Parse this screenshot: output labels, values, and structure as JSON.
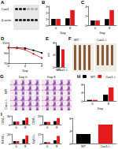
{
  "figure": {
    "A": {
      "label": "A",
      "rows": [
        "Cav1",
        "β-actin"
      ]
    },
    "F": {
      "label": "F",
      "columns": [
        "WT",
        "Cav1-/-"
      ]
    },
    "G": {
      "label": "G",
      "rows": [
        "WT",
        "Cav1-/-"
      ],
      "columns": [
        "Day 0",
        "Day 8"
      ]
    }
  },
  "chart_data": [
    {
      "type": "bar",
      "title": "B",
      "categories": [
        "0",
        "8"
      ],
      "xlabel": "Day",
      "series": [
        {
          "name": "WT",
          "color": "#000000",
          "values": [
            1.0,
            1.1
          ]
        },
        {
          "name": "Cav1-/-",
          "color": "#e41a1c",
          "values": [
            1.0,
            2.4
          ]
        }
      ],
      "ylim": [
        0,
        3
      ],
      "yticks": [
        0,
        1,
        2,
        3
      ],
      "grid": false
    },
    {
      "type": "bar",
      "title": "C",
      "categories": [
        "0",
        "8"
      ],
      "xlabel": "Day",
      "series": [
        {
          "name": "WT",
          "color": "#000000",
          "values": [
            1.0,
            1.3
          ]
        },
        {
          "name": "Cav1-/-",
          "color": "#e41a1c",
          "values": [
            1.0,
            3.2
          ]
        }
      ],
      "ylim": [
        0,
        4
      ],
      "yticks": [
        0,
        2,
        4
      ],
      "grid": false
    },
    {
      "type": "line",
      "title": "D",
      "x": [
        0,
        2,
        4,
        6,
        8
      ],
      "xlabel": "Day",
      "series": [
        {
          "name": "WT",
          "color": "#000000",
          "values": [
            100,
            100,
            99,
            95,
            90
          ]
        },
        {
          "name": "Cav1-/-",
          "color": "#e41a1c",
          "values": [
            100,
            99,
            96,
            88,
            80
          ]
        }
      ],
      "xlim": [
        0,
        8
      ],
      "xticks": [
        0,
        4,
        8
      ],
      "ylim": [
        70,
        110
      ],
      "yticks": [
        70,
        90,
        110
      ],
      "grid": false
    },
    {
      "type": "bar",
      "title": "E",
      "categories": [
        "WT",
        "Cav1-/-"
      ],
      "values": [
        7.0,
        5.8
      ],
      "colors": [
        "#000000",
        "#e41a1c"
      ],
      "ylabel": "cm",
      "ylim": [
        0,
        8
      ],
      "yticks": [
        0,
        4,
        8
      ],
      "grid": false
    },
    {
      "type": "bar",
      "title": "H",
      "categories": [
        "0",
        "8"
      ],
      "xlabel": "Day",
      "series": [
        {
          "name": "WT",
          "color": "#000000",
          "values": [
            0.5,
            3.0
          ]
        },
        {
          "name": "Cav1-/-",
          "color": "#e41a1c",
          "values": [
            0.5,
            6.5
          ]
        }
      ],
      "ylim": [
        0,
        8
      ],
      "yticks": [
        0,
        4,
        8
      ],
      "legend": "top",
      "grid": false
    },
    {
      "type": "bar",
      "title": "I",
      "categories": [
        "0",
        "8"
      ],
      "ylabel": "CD4+",
      "series": [
        {
          "name": "WT",
          "color": "#000000",
          "values": [
            10,
            14
          ]
        },
        {
          "name": "Cav1-/-",
          "color": "#e41a1c",
          "values": [
            10,
            24
          ]
        }
      ],
      "ylim": [
        0,
        30
      ],
      "yticks": [
        0,
        30
      ],
      "grid": false
    },
    {
      "type": "bar",
      "categories": [
        "0",
        "8"
      ],
      "ylabel": "CD8+",
      "series": [
        {
          "name": "WT",
          "color": "#000000",
          "values": [
            6,
            8
          ]
        },
        {
          "name": "Cav1-/-",
          "color": "#e41a1c",
          "values": [
            6,
            15
          ]
        }
      ],
      "ylim": [
        0,
        20
      ],
      "yticks": [
        0,
        20
      ],
      "grid": false
    },
    {
      "type": "bar",
      "categories": [
        "0",
        "8"
      ],
      "ylabel": "F4/80+",
      "series": [
        {
          "name": "WT",
          "color": "#000000",
          "values": [
            5,
            9
          ]
        },
        {
          "name": "Cav1-/-",
          "color": "#e41a1c",
          "values": [
            5,
            17
          ]
        }
      ],
      "ylim": [
        0,
        20
      ],
      "yticks": [
        0,
        20
      ],
      "grid": false
    },
    {
      "type": "bar",
      "categories": [
        "0",
        "8"
      ],
      "ylabel": "Ly6G+",
      "series": [
        {
          "name": "WT",
          "color": "#000000",
          "values": [
            2,
            5
          ]
        },
        {
          "name": "Cav1-/-",
          "color": "#e41a1c",
          "values": [
            2,
            12
          ]
        }
      ],
      "ylim": [
        0,
        15
      ],
      "yticks": [
        0,
        15
      ],
      "grid": false
    },
    {
      "type": "bar",
      "categories": [
        "WT",
        "Cav1-/-"
      ],
      "values": [
        3.0,
        6.0
      ],
      "colors": [
        "#000000",
        "#e41a1c"
      ],
      "ylim": [
        0,
        8
      ],
      "yticks": [
        0,
        4,
        8
      ],
      "grid": false
    }
  ]
}
